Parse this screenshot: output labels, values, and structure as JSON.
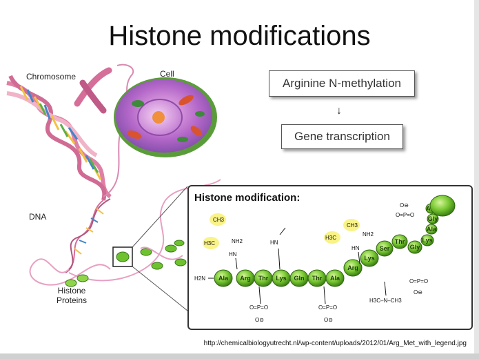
{
  "title": "Histone modifications",
  "labels": {
    "chromosome": "Chromosome",
    "cell": "Cell",
    "dna": "DNA",
    "histone_proteins_line1": "Histone",
    "histone_proteins_line2": "Proteins"
  },
  "flow": {
    "box1": "Arginine N-methylation",
    "arrow": "↓",
    "box2": "Gene transcription"
  },
  "panel": {
    "title": "Histone modification:",
    "beads": [
      "Ala",
      "Arg",
      "Thr",
      "Lys",
      "Gln",
      "Thr",
      "Ala",
      "Arg",
      "Lys",
      "Ser",
      "Thr",
      "Gly",
      "Lys",
      "Ala",
      "Gly",
      "Arg"
    ],
    "terminus": "H2N",
    "groups": {
      "ch3": "CH3",
      "h3c": "H3C",
      "nh2": "NH2",
      "hn": "HN",
      "n": "N",
      "phosphate_top": "O=P=O",
      "o_minus": "O⊖",
      "trimethyl": "H3C–N–CH3"
    }
  },
  "source_url": "http://chemicalbiologyutrecht.nl/wp-content/uploads/2012/01/Arg_Met_with_legend.jpg"
}
